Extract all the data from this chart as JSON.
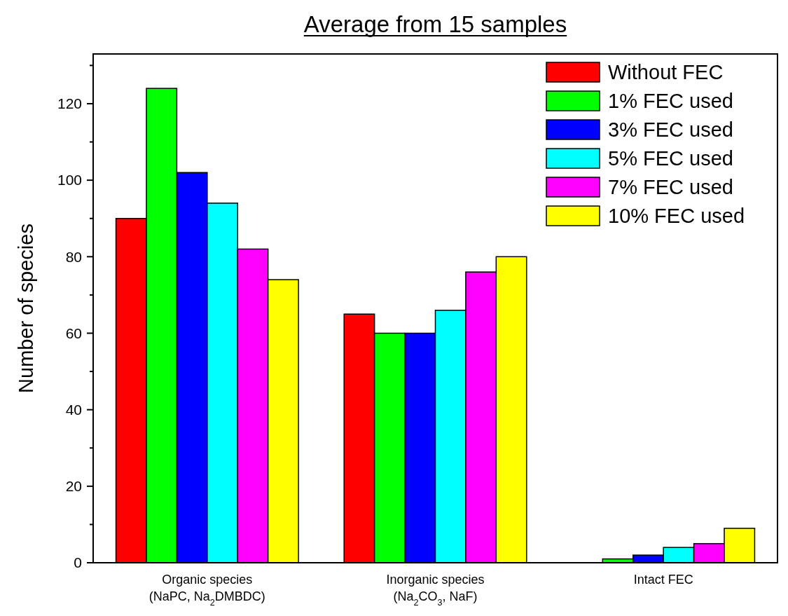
{
  "chart_data": {
    "type": "bar",
    "title": "Average from 15 samples",
    "ylabel": "Number of species",
    "categories": [
      "Organic species\n(NaPC, Na$_{2}$DMBDC)",
      "Inorganic species\n(Na$_{2}$CO$_{3}$, NaF)",
      "Intact FEC"
    ],
    "series": [
      {
        "name": "Without FEC",
        "color": "#ff0000",
        "values": [
          90,
          65,
          0
        ]
      },
      {
        "name": "1% FEC used",
        "color": "#00ff00",
        "values": [
          124,
          60,
          1
        ]
      },
      {
        "name": "3% FEC used",
        "color": "#0000ff",
        "values": [
          102,
          60,
          2
        ]
      },
      {
        "name": "5% FEC used",
        "color": "#00ffff",
        "values": [
          94,
          66,
          4
        ]
      },
      {
        "name": "7% FEC used",
        "color": "#ff00ff",
        "values": [
          82,
          76,
          5
        ]
      },
      {
        "name": "10% FEC used",
        "color": "#ffff00",
        "values": [
          74,
          80,
          9
        ]
      }
    ],
    "ylim": [
      0,
      133
    ],
    "yticks": [
      0,
      {
        "value": 10,
        "label": null
      },
      20,
      {
        "value": 30,
        "label": null
      },
      40,
      {
        "value": 50,
        "label": null
      },
      60,
      {
        "value": 70,
        "label": null
      },
      80,
      {
        "value": 90,
        "label": null
      },
      100,
      {
        "value": 110,
        "label": null
      },
      120,
      {
        "value": 130,
        "label": null
      }
    ],
    "legend": "top right",
    "grid": false
  }
}
